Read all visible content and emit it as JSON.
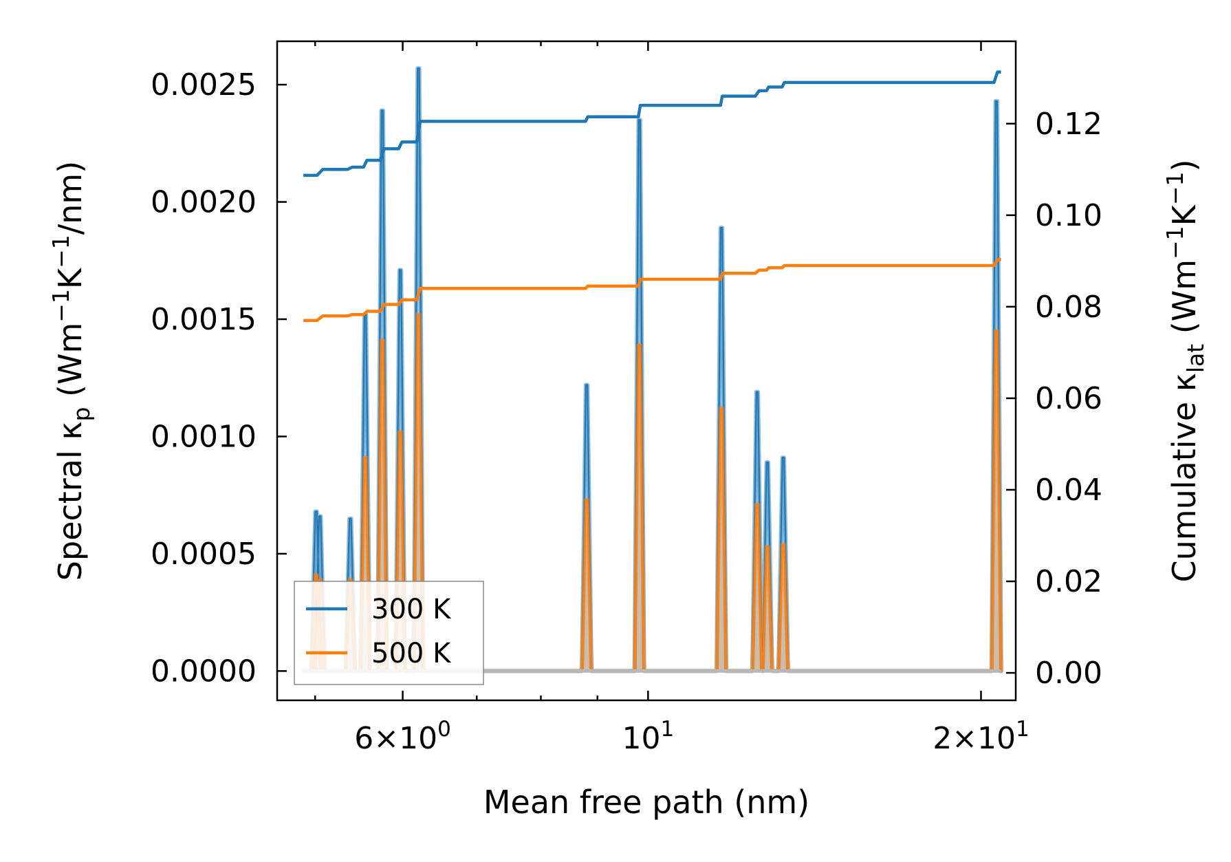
{
  "chart_data": {
    "type": "line",
    "xlabel": "Mean free path (nm)",
    "ylabel_left": "Spectral κp (Wm−1K−1/nm)",
    "ylabel_right": "Cumulative κlat (Wm−1K−1)",
    "xscale": "log",
    "xlim": [
      4.62,
      21.5
    ],
    "ylim_left": [
      -0.000125,
      0.002685
    ],
    "ylim_right": [
      -0.006,
      0.138
    ],
    "x_ticks": [
      {
        "value": 6,
        "base": "6",
        "exp": "0"
      },
      {
        "value": 10,
        "base": "10",
        "exp": "1"
      },
      {
        "value": 20,
        "base": "2",
        "exp": "1"
      }
    ],
    "y_ticks_left": [
      "0.0000",
      "0.0005",
      "0.0010",
      "0.0015",
      "0.0020",
      "0.0025"
    ],
    "y_ticks_right": [
      "0.00",
      "0.02",
      "0.04",
      "0.06",
      "0.08",
      "0.10",
      "0.12"
    ],
    "legend": {
      "location": "lower left",
      "entries": [
        "300 K",
        "500 K"
      ]
    },
    "colors": {
      "s300": "#1f77b4",
      "s500": "#ff7f0e"
    },
    "spectral_x_range": [
      4.88,
      20.78
    ],
    "spectral_series": [
      {
        "name": "300 K",
        "peaks": [
          {
            "x": 5.01,
            "y": 0.00068
          },
          {
            "x": 5.05,
            "y": 0.00066
          },
          {
            "x": 5.38,
            "y": 0.00065
          },
          {
            "x": 5.55,
            "y": 0.00152
          },
          {
            "x": 5.75,
            "y": 0.00239
          },
          {
            "x": 5.97,
            "y": 0.00171
          },
          {
            "x": 6.2,
            "y": 0.00257
          },
          {
            "x": 8.8,
            "y": 0.00122
          },
          {
            "x": 9.82,
            "y": 0.00235
          },
          {
            "x": 11.65,
            "y": 0.00189
          },
          {
            "x": 12.55,
            "y": 0.00119
          },
          {
            "x": 12.82,
            "y": 0.00089
          },
          {
            "x": 13.25,
            "y": 0.00091
          },
          {
            "x": 20.65,
            "y": 0.00243
          }
        ]
      },
      {
        "name": "500 K",
        "peaks": [
          {
            "x": 5.01,
            "y": 0.00041
          },
          {
            "x": 5.05,
            "y": 0.00039
          },
          {
            "x": 5.38,
            "y": 0.00039
          },
          {
            "x": 5.55,
            "y": 0.00091
          },
          {
            "x": 5.75,
            "y": 0.00141
          },
          {
            "x": 5.97,
            "y": 0.00102
          },
          {
            "x": 6.2,
            "y": 0.00152
          },
          {
            "x": 8.8,
            "y": 0.00073
          },
          {
            "x": 9.82,
            "y": 0.00139
          },
          {
            "x": 11.65,
            "y": 0.00112
          },
          {
            "x": 12.55,
            "y": 0.00071
          },
          {
            "x": 12.82,
            "y": 0.00053
          },
          {
            "x": 13.25,
            "y": 0.00054
          },
          {
            "x": 20.65,
            "y": 0.00145
          }
        ]
      }
    ],
    "cumulative_series": [
      {
        "name": "300 K",
        "points": [
          {
            "x": 4.88,
            "y": 0.1087
          },
          {
            "x": 5.02,
            "y": 0.1087
          },
          {
            "x": 5.08,
            "y": 0.11
          },
          {
            "x": 5.35,
            "y": 0.11
          },
          {
            "x": 5.4,
            "y": 0.1105
          },
          {
            "x": 5.53,
            "y": 0.1105
          },
          {
            "x": 5.57,
            "y": 0.112
          },
          {
            "x": 5.73,
            "y": 0.112
          },
          {
            "x": 5.77,
            "y": 0.1145
          },
          {
            "x": 5.95,
            "y": 0.1145
          },
          {
            "x": 5.99,
            "y": 0.116
          },
          {
            "x": 6.18,
            "y": 0.116
          },
          {
            "x": 6.22,
            "y": 0.1205
          },
          {
            "x": 8.78,
            "y": 0.1205
          },
          {
            "x": 8.82,
            "y": 0.1215
          },
          {
            "x": 9.8,
            "y": 0.1215
          },
          {
            "x": 9.84,
            "y": 0.124
          },
          {
            "x": 11.63,
            "y": 0.124
          },
          {
            "x": 11.67,
            "y": 0.126
          },
          {
            "x": 12.5,
            "y": 0.126
          },
          {
            "x": 12.6,
            "y": 0.1272
          },
          {
            "x": 12.8,
            "y": 0.1272
          },
          {
            "x": 12.85,
            "y": 0.128
          },
          {
            "x": 13.22,
            "y": 0.128
          },
          {
            "x": 13.28,
            "y": 0.129
          },
          {
            "x": 20.55,
            "y": 0.129
          },
          {
            "x": 20.7,
            "y": 0.1313
          },
          {
            "x": 20.85,
            "y": 0.1313
          }
        ]
      },
      {
        "name": "500 K",
        "points": [
          {
            "x": 4.88,
            "y": 0.077
          },
          {
            "x": 5.02,
            "y": 0.077
          },
          {
            "x": 5.08,
            "y": 0.078
          },
          {
            "x": 5.35,
            "y": 0.078
          },
          {
            "x": 5.4,
            "y": 0.0783
          },
          {
            "x": 5.53,
            "y": 0.0783
          },
          {
            "x": 5.57,
            "y": 0.079
          },
          {
            "x": 5.73,
            "y": 0.079
          },
          {
            "x": 5.77,
            "y": 0.0805
          },
          {
            "x": 5.95,
            "y": 0.0805
          },
          {
            "x": 5.99,
            "y": 0.0815
          },
          {
            "x": 6.18,
            "y": 0.0815
          },
          {
            "x": 6.22,
            "y": 0.084
          },
          {
            "x": 8.78,
            "y": 0.084
          },
          {
            "x": 8.82,
            "y": 0.0845
          },
          {
            "x": 9.8,
            "y": 0.0845
          },
          {
            "x": 9.84,
            "y": 0.086
          },
          {
            "x": 11.63,
            "y": 0.086
          },
          {
            "x": 11.67,
            "y": 0.0873
          },
          {
            "x": 12.5,
            "y": 0.0873
          },
          {
            "x": 12.6,
            "y": 0.088
          },
          {
            "x": 12.8,
            "y": 0.088
          },
          {
            "x": 12.85,
            "y": 0.0885
          },
          {
            "x": 13.22,
            "y": 0.0885
          },
          {
            "x": 13.28,
            "y": 0.089
          },
          {
            "x": 20.55,
            "y": 0.089
          },
          {
            "x": 20.7,
            "y": 0.0903
          },
          {
            "x": 20.85,
            "y": 0.0903
          }
        ]
      }
    ]
  }
}
